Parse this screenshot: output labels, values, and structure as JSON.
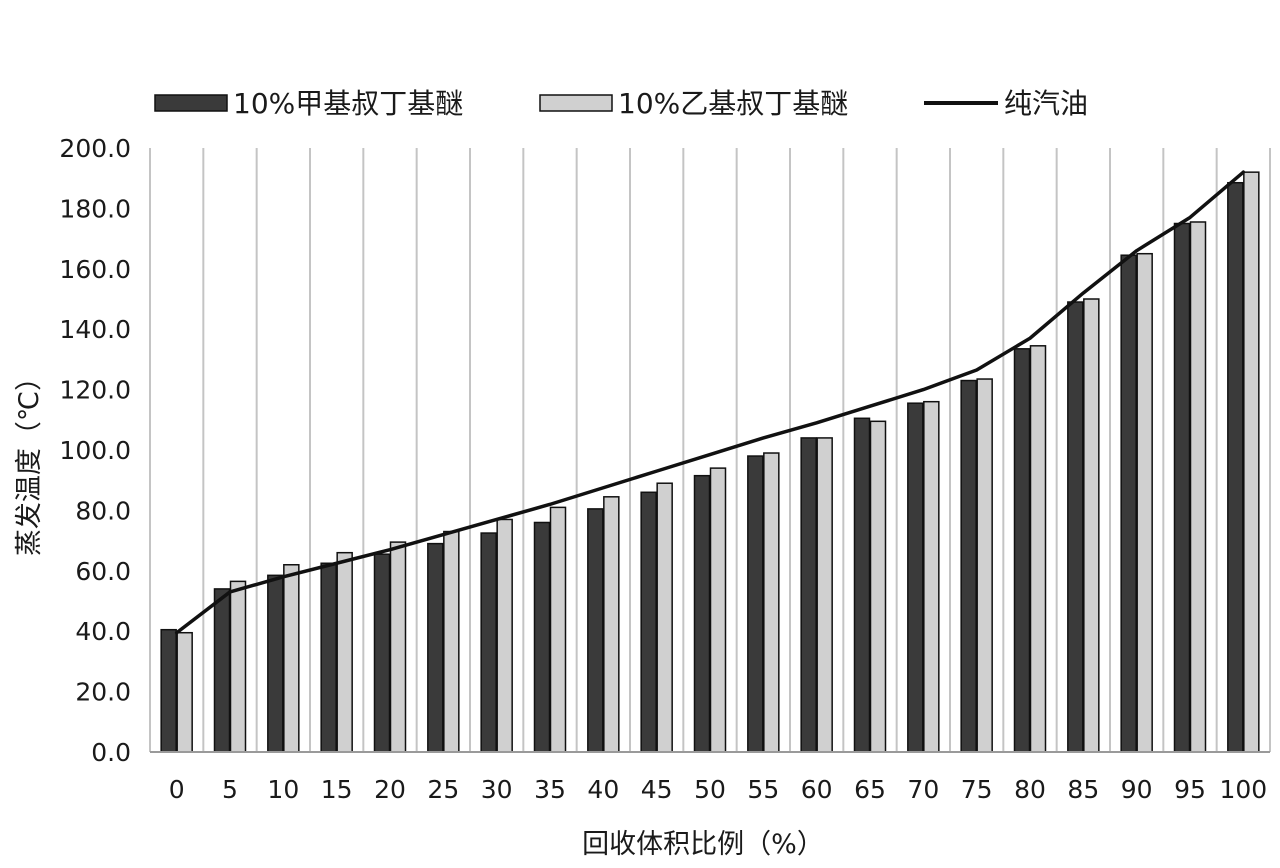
{
  "chart_data": {
    "type": "bar",
    "title": "",
    "xlabel": "回收体积比例（%）",
    "ylabel": "蒸发温度（℃）",
    "ylim": [
      0,
      200
    ],
    "yticks": [
      "0.0",
      "20.0",
      "40.0",
      "60.0",
      "80.0",
      "100.0",
      "120.0",
      "140.0",
      "160.0",
      "180.0",
      "200.0"
    ],
    "categories": [
      "0",
      "5",
      "10",
      "15",
      "20",
      "25",
      "30",
      "35",
      "40",
      "45",
      "50",
      "55",
      "60",
      "65",
      "70",
      "75",
      "80",
      "85",
      "90",
      "95",
      "100"
    ],
    "series": [
      {
        "name": "10%甲基叔丁基醚",
        "kind": "bar",
        "color": "#3a3a3a",
        "values": [
          40.5,
          54.0,
          58.5,
          62.5,
          65.5,
          69.0,
          72.5,
          76.0,
          80.5,
          86.0,
          91.5,
          98.0,
          104.0,
          110.5,
          115.5,
          123.0,
          133.5,
          149.0,
          164.5,
          175.0,
          188.5
        ]
      },
      {
        "name": "10%乙基叔丁基醚",
        "kind": "bar",
        "color": "#d0d0d0",
        "values": [
          39.5,
          56.5,
          62.0,
          66.0,
          69.5,
          73.0,
          77.0,
          81.0,
          84.5,
          89.0,
          94.0,
          99.0,
          104.0,
          109.5,
          116.0,
          123.5,
          134.5,
          150.0,
          165.0,
          175.5,
          192.0
        ]
      },
      {
        "name": "纯汽油",
        "kind": "line",
        "color": "#111111",
        "values": [
          39.5,
          53.0,
          58.0,
          62.5,
          67.0,
          72.0,
          77.0,
          82.0,
          87.5,
          93.0,
          98.5,
          104.0,
          109.0,
          114.5,
          120.0,
          126.5,
          137.0,
          152.0,
          166.0,
          177.0,
          192.0
        ]
      }
    ],
    "grid": "vertical",
    "legend_position": "top"
  }
}
